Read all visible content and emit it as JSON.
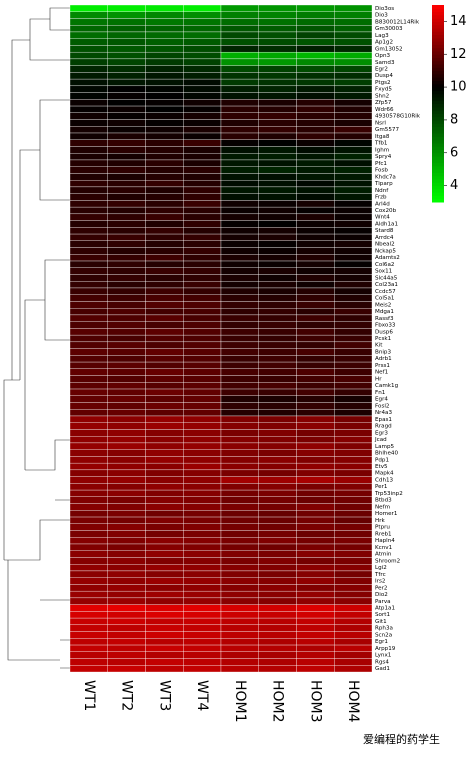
{
  "chart_data": {
    "type": "heatmap",
    "columns": [
      "WT1",
      "WT2",
      "WT3",
      "WT4",
      "HOM1",
      "HOM2",
      "HOM3",
      "HOM4"
    ],
    "rows": [
      "Dio3os",
      "Dio3",
      "B830012L14Rik",
      "Gm30003",
      "Lag3",
      "Ap1g2",
      "Gm13052",
      "Opn3",
      "Samd3",
      "Egr2",
      "Dusp4",
      "Ptgs2",
      "Fxyd5",
      "Shn2",
      "Zfp57",
      "Wdr66",
      "4930578G10Rik",
      "Nsrl",
      "Gm5577",
      "Itga8",
      "Tfb1",
      "Ighm",
      "Spry4",
      "Pfc1",
      "Fosb",
      "Khdc7a",
      "Tiparp",
      "Ndnf",
      "Frzb",
      "Arl4d",
      "Cox20b",
      "Wnt4",
      "Aldh1a1",
      "Stard8",
      "Arrdc4",
      "Nbeal2",
      "Nckap5",
      "Adamts2",
      "Col6a2",
      "Sox11",
      "Slc44a5",
      "Col23a1",
      "Ccdc57",
      "Col5a1",
      "Meis2",
      "Mdga1",
      "Rassf3",
      "Fbxo33",
      "Dusp6",
      "Pcsk1",
      "Kit",
      "Bnip3",
      "Adrb1",
      "Prss1",
      "Nef1",
      "Hr",
      "Camk1g",
      "Fn1",
      "Egr4",
      "Fosl2",
      "Nr4a3",
      "Epas1",
      "Rragd",
      "Egr3",
      "Jcad",
      "Lamp5",
      "Bhlhe40",
      "Pdp1",
      "Etv5",
      "Mapk4",
      "Cdh13",
      "Per1",
      "Trp53inp2",
      "Btbd3",
      "Nefm",
      "Homer1",
      "Hrk",
      "Ptpru",
      "Rreb1",
      "Hapln4",
      "Kcnv1",
      "Atmin",
      "Shroom2",
      "Lgi2",
      "Tfrc",
      "Irs2",
      "Per2",
      "Dio2",
      "Parva",
      "Atp1a1",
      "Sort1",
      "Git1",
      "Rph3a",
      "Scn2a",
      "Egr1",
      "Arpp19",
      "Lynx1",
      "Rgs4",
      "Gad1"
    ],
    "values": [
      [
        3.5,
        3.5,
        3.6,
        3.5,
        5.8,
        5.9,
        5.8,
        6.0
      ],
      [
        6.2,
        6.0,
        6.3,
        6.1,
        6.5,
        6.4,
        6.6,
        6.5
      ],
      [
        6.8,
        6.9,
        6.7,
        6.8,
        7.0,
        6.9,
        7.1,
        7.0
      ],
      [
        7.2,
        7.4,
        7.3,
        7.2,
        7.6,
        7.5,
        7.7,
        7.4
      ],
      [
        7.0,
        7.2,
        7.1,
        7.0,
        8.0,
        7.8,
        8.2,
        7.9
      ],
      [
        7.5,
        7.6,
        7.4,
        7.5,
        7.8,
        7.9,
        7.7,
        7.8
      ],
      [
        7.8,
        7.6,
        7.7,
        7.9,
        9.0,
        8.8,
        9.2,
        8.9
      ],
      [
        8.0,
        7.8,
        8.1,
        7.9,
        5.2,
        5.4,
        5.0,
        5.3
      ],
      [
        8.3,
        8.1,
        8.4,
        8.2,
        6.0,
        5.8,
        6.2,
        6.1
      ],
      [
        9.0,
        8.8,
        9.1,
        8.9,
        8.0,
        8.2,
        7.9,
        8.1
      ],
      [
        9.3,
        9.1,
        9.4,
        9.2,
        8.6,
        8.5,
        8.7,
        8.8
      ],
      [
        9.6,
        9.4,
        9.5,
        9.7,
        8.4,
        8.6,
        8.5,
        8.3
      ],
      [
        9.8,
        10,
        9.9,
        9.7,
        9.2,
        9.0,
        9.3,
        9.1
      ],
      [
        9.9,
        10.1,
        10,
        9.8,
        9.5,
        9.4,
        9.6,
        9.3
      ],
      [
        10.2,
        10,
        10.1,
        10.3,
        10.6,
        10.5,
        10.7,
        10.4
      ],
      [
        10.1,
        10.2,
        10,
        10.1,
        10.8,
        10.7,
        10.9,
        10.6
      ],
      [
        10.3,
        10.1,
        10.2,
        10.4,
        10.9,
        11,
        10.8,
        10.7
      ],
      [
        10.2,
        10.3,
        10.1,
        10.2,
        10.6,
        10.8,
        10.7,
        10.5
      ],
      [
        10.4,
        10.2,
        10.3,
        10.5,
        10.9,
        11,
        10.8,
        11.1
      ],
      [
        10.3,
        10.5,
        10.4,
        10.2,
        10.8,
        10.6,
        10.9,
        10.7
      ],
      [
        10.9,
        11,
        10.8,
        11.1,
        10.1,
        10,
        10.2,
        9.9
      ],
      [
        10.6,
        10.8,
        10.7,
        10.5,
        9.6,
        9.4,
        9.7,
        9.5
      ],
      [
        10.5,
        10.4,
        10.6,
        10.5,
        9.3,
        9.2,
        9.4,
        9.1
      ],
      [
        10.7,
        10.6,
        10.8,
        10.5,
        9.4,
        9.5,
        9.3,
        9.6
      ],
      [
        10.8,
        10.9,
        10.7,
        10.8,
        9.2,
        9.0,
        9.3,
        9.1
      ],
      [
        10.6,
        10.5,
        10.7,
        10.6,
        9.5,
        9.6,
        9.4,
        9.3
      ],
      [
        10.9,
        10.8,
        11,
        10.7,
        9.7,
        9.6,
        9.8,
        9.5
      ],
      [
        10.7,
        10.8,
        10.6,
        10.9,
        9.4,
        9.3,
        9.5,
        9.2
      ],
      [
        10.8,
        10.6,
        10.7,
        10.9,
        9.6,
        9.5,
        9.7,
        9.4
      ],
      [
        10.9,
        11,
        10.8,
        11.1,
        10.3,
        10.2,
        10.4,
        10.1
      ],
      [
        10.8,
        10.7,
        10.9,
        10.8,
        10.2,
        10.3,
        10.1,
        10.2
      ],
      [
        11,
        10.9,
        11.1,
        10.8,
        10.4,
        10.3,
        10.5,
        10.2
      ],
      [
        10.7,
        10.8,
        10.6,
        10.9,
        10.1,
        10,
        10.2,
        10.3
      ],
      [
        10.9,
        10.8,
        11,
        10.7,
        10.3,
        10.4,
        10.2,
        10.1
      ],
      [
        11,
        11.1,
        10.9,
        11,
        10.4,
        10.5,
        10.3,
        10.2
      ],
      [
        10.8,
        10.9,
        10.7,
        10.8,
        10.2,
        10.1,
        10.3,
        10.4
      ],
      [
        10.9,
        10.7,
        10.8,
        11,
        10.3,
        10.2,
        10.4,
        10.3
      ],
      [
        11.1,
        11,
        11.2,
        10.9,
        10.5,
        10.4,
        10.6,
        10.3
      ],
      [
        10.8,
        10.9,
        10.7,
        10.8,
        10.3,
        10.2,
        10.4,
        10.1
      ],
      [
        11,
        10.9,
        11.1,
        11,
        10.4,
        10.5,
        10.3,
        10.4
      ],
      [
        10.9,
        11,
        10.8,
        10.9,
        10.5,
        10.3,
        10.6,
        10.4
      ],
      [
        11,
        10.8,
        10.9,
        11.1,
        10.4,
        10.5,
        10.3,
        10.6
      ],
      [
        11.1,
        11,
        11.2,
        11,
        10.6,
        10.5,
        10.7,
        10.4
      ],
      [
        11.3,
        11.2,
        11.4,
        11.3,
        10.8,
        10.7,
        10.9,
        10.6
      ],
      [
        11.5,
        11.4,
        11.6,
        11.5,
        11,
        10.9,
        11.1,
        10.8
      ],
      [
        11.4,
        11.5,
        11.3,
        11.4,
        10.9,
        11,
        10.8,
        11.1
      ],
      [
        11.6,
        11.5,
        11.7,
        11.4,
        11.1,
        11,
        11.2,
        10.9
      ],
      [
        11.5,
        11.6,
        11.4,
        11.5,
        11,
        11.1,
        10.9,
        11
      ],
      [
        11.7,
        11.6,
        11.8,
        11.6,
        11.2,
        11.1,
        11.3,
        11
      ],
      [
        11.5,
        11.4,
        11.6,
        11.5,
        11.1,
        11,
        11.2,
        11.1
      ],
      [
        11.6,
        11.7,
        11.5,
        11.6,
        11.2,
        11.1,
        11,
        11.3
      ],
      [
        11.8,
        11.7,
        11.9,
        11.7,
        11.3,
        11.2,
        11.4,
        11.1
      ],
      [
        11.6,
        11.5,
        11.7,
        11.6,
        11.1,
        11.2,
        11,
        11.1
      ],
      [
        11.7,
        11.8,
        11.6,
        11.7,
        11.2,
        11.3,
        11.1,
        11.2
      ],
      [
        11.9,
        11.8,
        12,
        11.8,
        11.4,
        11.3,
        11.5,
        11.2
      ],
      [
        11.7,
        11.6,
        11.8,
        11.7,
        11.2,
        11.1,
        11.3,
        11.4
      ],
      [
        11.8,
        11.9,
        11.7,
        11.8,
        11.3,
        11.4,
        11.2,
        11.3
      ],
      [
        12,
        11.9,
        12.1,
        11.9,
        11.2,
        11.1,
        11.3,
        11
      ],
      [
        11.9,
        12,
        11.8,
        11.9,
        10.6,
        10.5,
        10.7,
        10.4
      ],
      [
        12,
        11.9,
        12.1,
        12,
        10.9,
        10.8,
        11,
        10.7
      ],
      [
        11.9,
        12,
        11.8,
        11.9,
        10.7,
        10.6,
        10.8,
        10.5
      ],
      [
        12.8,
        12.7,
        12.9,
        12.8,
        12.5,
        12.4,
        12.6,
        12.3
      ],
      [
        12.9,
        12.8,
        13,
        12.9,
        12.6,
        12.5,
        12.7,
        12.4
      ],
      [
        12.7,
        12.8,
        12.6,
        12.7,
        12.4,
        12.5,
        12.3,
        12.4
      ],
      [
        12.8,
        12.9,
        12.7,
        12.8,
        12.6,
        12.5,
        12.4,
        12.6
      ],
      [
        12.9,
        13,
        12.8,
        12.9,
        12.7,
        12.6,
        12.8,
        12.5
      ],
      [
        12.7,
        12.6,
        12.8,
        12.7,
        12.5,
        12.4,
        12.6,
        12.5
      ],
      [
        12.8,
        12.7,
        12.9,
        12.8,
        12.6,
        12.7,
        12.5,
        12.6
      ],
      [
        12.9,
        12.8,
        12.7,
        13,
        12.7,
        12.6,
        12.8,
        12.7
      ],
      [
        12.6,
        12.7,
        12.5,
        12.6,
        12.4,
        12.3,
        12.5,
        12.4
      ],
      [
        12.8,
        12.9,
        12.7,
        12.8,
        13.2,
        13.1,
        13.3,
        13
      ],
      [
        12.7,
        12.6,
        12.8,
        12.7,
        12.5,
        12.6,
        12.4,
        12.5
      ],
      [
        12.6,
        12.7,
        12.5,
        12.6,
        12.3,
        12.4,
        12.2,
        12.3
      ],
      [
        12.5,
        12.4,
        12.6,
        12.5,
        12.2,
        12.3,
        12.1,
        12.2
      ],
      [
        12.6,
        12.5,
        12.7,
        12.6,
        12.4,
        12.3,
        12.5,
        12.2
      ],
      [
        12.3,
        12.4,
        12.2,
        12.3,
        12.1,
        12,
        12.2,
        12.1
      ],
      [
        12.4,
        12.3,
        12.5,
        12.4,
        12.2,
        12.1,
        12.3,
        12
      ],
      [
        12.5,
        12.6,
        12.4,
        12.5,
        12.3,
        12.2,
        12.4,
        12.3
      ],
      [
        12.4,
        12.5,
        12.3,
        12.4,
        12.2,
        12.3,
        12.1,
        12.2
      ],
      [
        12.6,
        12.5,
        12.7,
        12.6,
        12.4,
        12.5,
        12.3,
        12.4
      ],
      [
        12.5,
        12.4,
        12.6,
        12.5,
        12.3,
        12.2,
        12.4,
        12.3
      ],
      [
        12.7,
        12.6,
        12.8,
        12.7,
        12.5,
        12.4,
        12.6,
        12.5
      ],
      [
        12.6,
        12.7,
        12.5,
        12.6,
        12.4,
        12.5,
        12.3,
        12.4
      ],
      [
        12.8,
        12.7,
        12.9,
        12.8,
        12.6,
        12.5,
        12.7,
        12.6
      ],
      [
        12.7,
        12.8,
        12.6,
        12.7,
        12.5,
        12.4,
        12.6,
        12.3
      ],
      [
        12.9,
        12.8,
        13,
        12.9,
        12.7,
        12.6,
        12.8,
        12.5
      ],
      [
        12.8,
        12.9,
        12.7,
        12.8,
        12.6,
        12.7,
        12.5,
        12.6
      ],
      [
        13,
        12.9,
        13.1,
        13,
        12.8,
        12.7,
        12.9,
        12.6
      ],
      [
        12.9,
        13,
        12.8,
        12.9,
        12.7,
        12.6,
        12.8,
        12.7
      ],
      [
        14.4,
        14.5,
        14.3,
        14.4,
        14.2,
        14.1,
        14.3,
        14
      ],
      [
        14.2,
        14.1,
        14.3,
        14.2,
        14,
        13.9,
        14.1,
        13.8
      ],
      [
        13.9,
        14,
        13.8,
        13.9,
        13.7,
        13.6,
        13.8,
        13.5
      ],
      [
        13.8,
        13.7,
        13.9,
        13.8,
        13.6,
        13.5,
        13.7,
        13.4
      ],
      [
        13.9,
        13.8,
        14,
        13.9,
        13.7,
        13.6,
        13.8,
        13.6
      ],
      [
        13.7,
        13.8,
        13.6,
        13.7,
        13.5,
        13.4,
        13.6,
        13.3
      ],
      [
        13.8,
        13.7,
        13.9,
        13.8,
        13.6,
        13.5,
        13.4,
        13.6
      ],
      [
        13.6,
        13.7,
        13.5,
        13.6,
        13.4,
        13.3,
        13.5,
        13.2
      ],
      [
        13.7,
        13.6,
        13.8,
        13.7,
        13.5,
        13.4,
        13.6,
        13.3
      ],
      [
        13.8,
        13.9,
        13.7,
        13.8,
        13.6,
        13.5,
        13.7,
        13.4
      ]
    ],
    "clim": [
      3,
      15
    ],
    "cticks": [
      4,
      6,
      8,
      10,
      12,
      14
    ],
    "colorscale": [
      "#00ff00",
      "#000000",
      "#ff0000"
    ],
    "cmid": 10,
    "watermark": "爱编程的药学生"
  }
}
